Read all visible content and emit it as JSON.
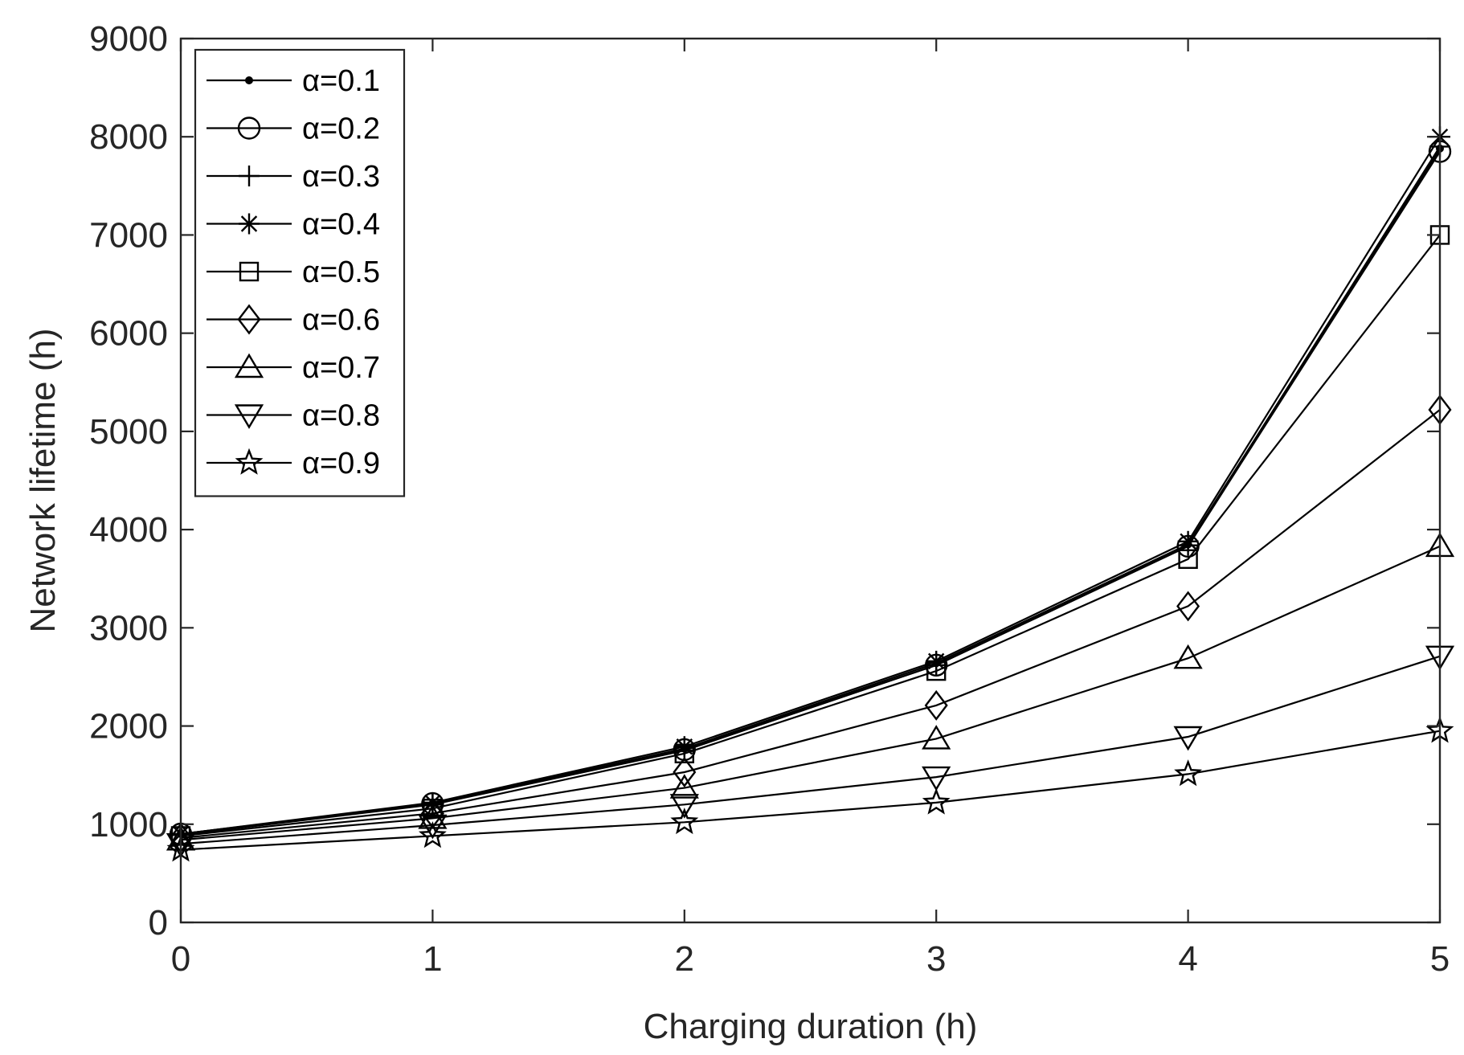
{
  "chart_data": {
    "type": "line",
    "title": "",
    "xlabel": "Charging duration (h)",
    "ylabel": "Network lifetime (h)",
    "xlim": [
      0,
      5
    ],
    "ylim": [
      0,
      9000
    ],
    "x": [
      0,
      1,
      2,
      3,
      4,
      5
    ],
    "xticks": [
      "0",
      "1",
      "2",
      "3",
      "4",
      "5"
    ],
    "yticks": [
      "0",
      "1000",
      "2000",
      "3000",
      "4000",
      "5000",
      "6000",
      "7000",
      "8000",
      "9000"
    ],
    "grid": false,
    "legend_position": "top-left",
    "line_color": "#000000",
    "series": [
      {
        "name": "α=0.1",
        "marker": "point",
        "values": [
          900,
          1210,
          1770,
          2640,
          3850,
          7880
        ]
      },
      {
        "name": "α=0.2",
        "marker": "circle",
        "values": [
          900,
          1210,
          1760,
          2620,
          3830,
          7850
        ]
      },
      {
        "name": "α=0.3",
        "marker": "plus",
        "values": [
          890,
          1200,
          1750,
          2620,
          3840,
          7900
        ]
      },
      {
        "name": "α=0.4",
        "marker": "asterisk",
        "values": [
          900,
          1220,
          1790,
          2660,
          3880,
          8000
        ]
      },
      {
        "name": "α=0.5",
        "marker": "square",
        "values": [
          880,
          1160,
          1720,
          2560,
          3700,
          7000
        ]
      },
      {
        "name": "α=0.6",
        "marker": "diamond",
        "values": [
          860,
          1110,
          1530,
          2210,
          3220,
          5220
        ]
      },
      {
        "name": "α=0.7",
        "marker": "triangle-up",
        "values": [
          840,
          1060,
          1370,
          1870,
          2690,
          3830
        ]
      },
      {
        "name": "α=0.8",
        "marker": "triangle-down",
        "values": [
          800,
          990,
          1200,
          1480,
          1890,
          2710
        ]
      },
      {
        "name": "α=0.9",
        "marker": "star",
        "values": [
          740,
          880,
          1020,
          1220,
          1510,
          1950
        ]
      }
    ]
  }
}
